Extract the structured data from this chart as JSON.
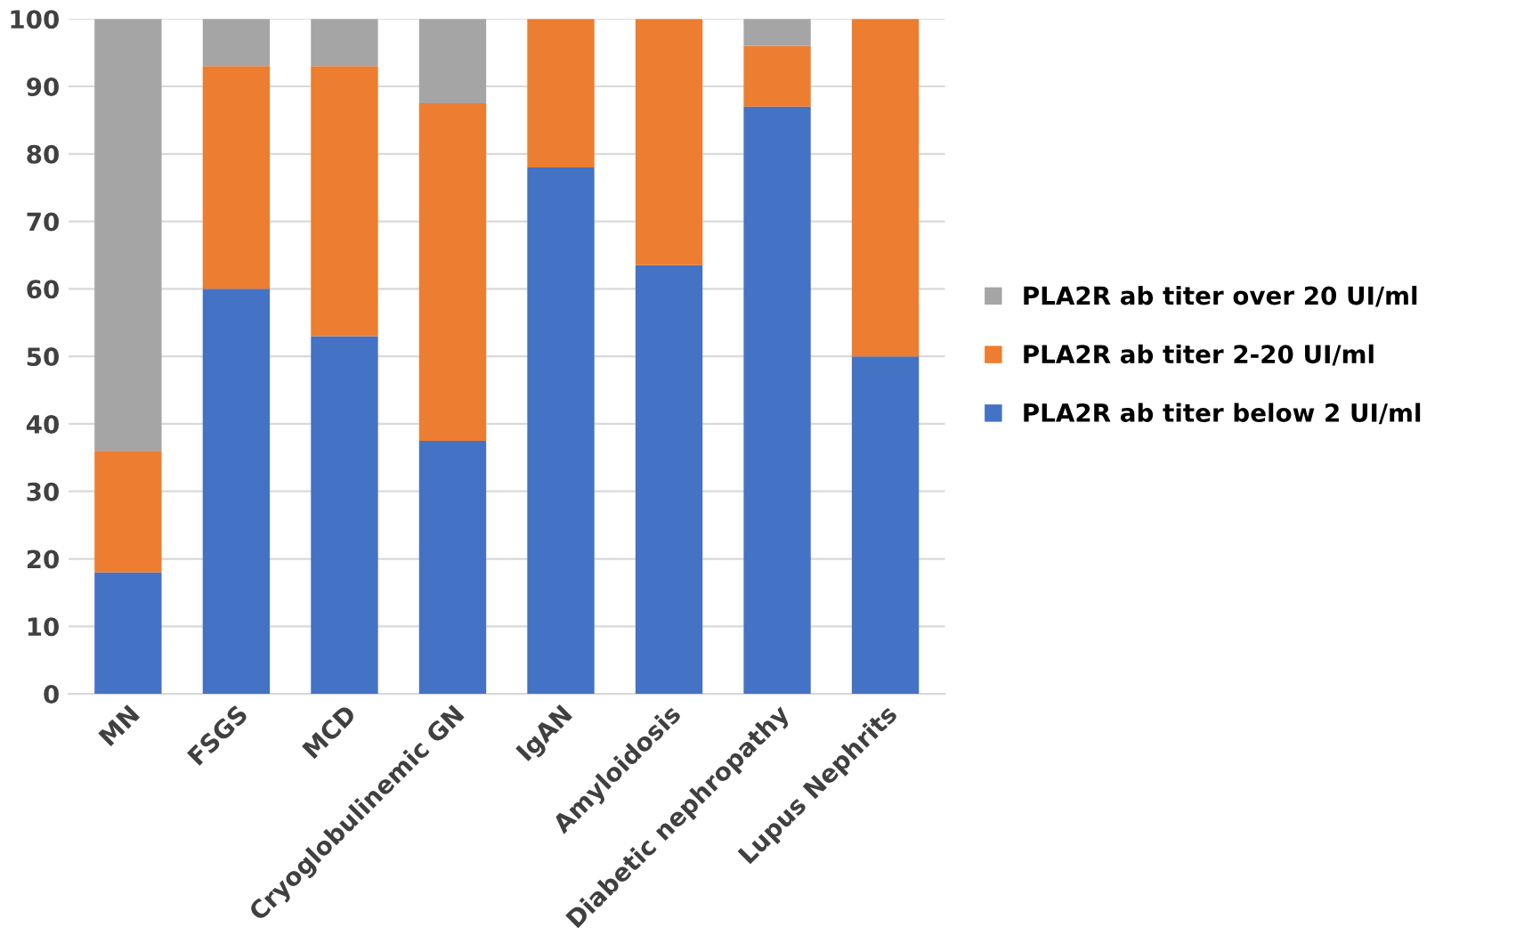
{
  "chart_data": {
    "type": "bar",
    "stacked": true,
    "categories": [
      "MN",
      "FSGS",
      "MCD",
      "Cryoglobulinemic GN",
      "IgAN",
      "Amyloidosis",
      "Diabetic nephropathy",
      "Lupus Nephrits"
    ],
    "series": [
      {
        "name": "PLA2R ab titer below 2 UI/ml",
        "color": "#4472c4",
        "values": [
          18,
          60,
          53,
          37.5,
          78,
          63.5,
          87,
          50
        ]
      },
      {
        "name": "PLA2R ab titer 2-20 UI/ml",
        "color": "#ed7d31",
        "values": [
          18,
          33,
          40,
          50,
          22,
          36.5,
          9,
          50
        ]
      },
      {
        "name": "PLA2R ab titer over 20 UI/ml",
        "color": "#a5a5a5",
        "values": [
          64,
          7,
          7,
          12.5,
          0,
          0,
          4,
          0
        ]
      }
    ],
    "ylim": [
      0,
      100
    ],
    "yticks": [
      0,
      10,
      20,
      30,
      40,
      50,
      60,
      70,
      80,
      90,
      100
    ],
    "grid": "y",
    "legend": "right"
  }
}
